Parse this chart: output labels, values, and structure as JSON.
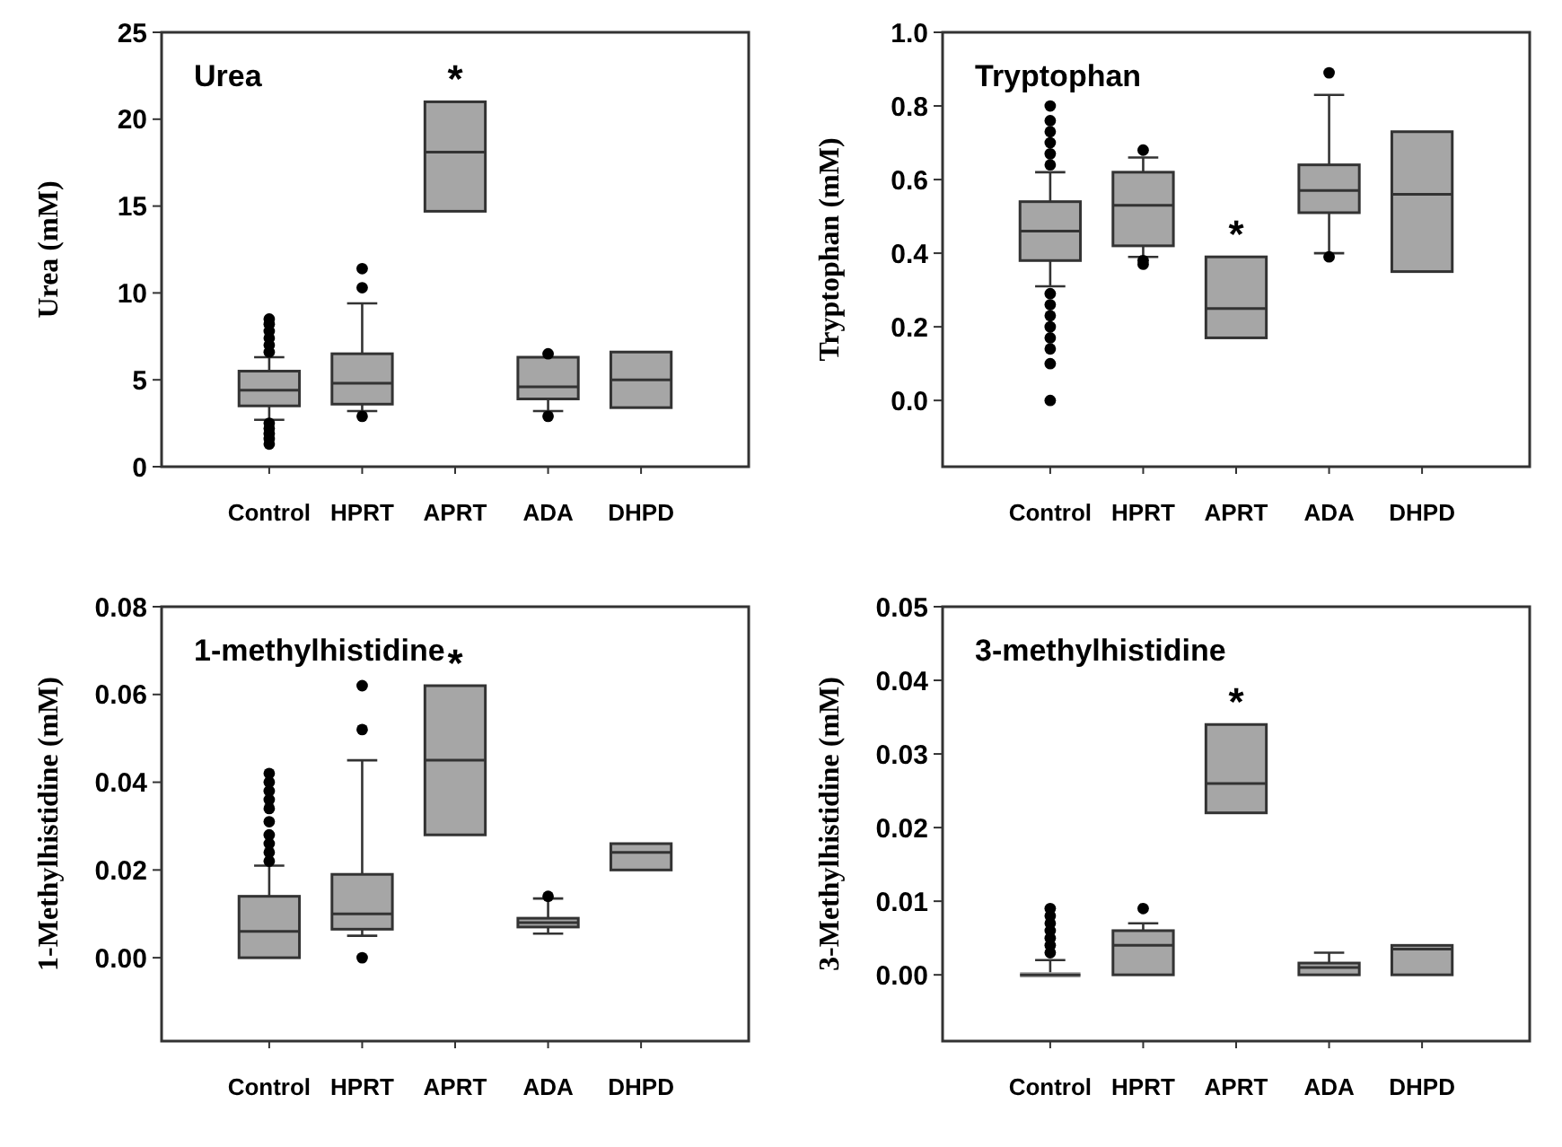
{
  "chart_data": [
    {
      "type": "box",
      "title": "Urea",
      "ylabel": "Urea (mM)",
      "categories": [
        "Control",
        "HPRT",
        "APRT",
        "ADA",
        "DHPD"
      ],
      "ylim": [
        0,
        25
      ],
      "yticks": [
        0,
        5,
        10,
        15,
        20,
        25
      ],
      "color": "#a6a6a6",
      "marker": "circle",
      "annotations": [
        {
          "text": "*",
          "x": "APRT",
          "y": 21.0
        }
      ],
      "boxes": [
        {
          "low": 2.7,
          "q1": 3.5,
          "median": 4.4,
          "q3": 5.5,
          "high": 6.3,
          "outliers": [
            1.3,
            1.6,
            1.9,
            2.2,
            2.5,
            6.6,
            7.0,
            7.4,
            7.8,
            8.2,
            8.5
          ]
        },
        {
          "low": 3.2,
          "q1": 3.6,
          "median": 4.8,
          "q3": 6.5,
          "high": 9.4,
          "outliers": [
            2.9,
            10.3,
            11.4
          ]
        },
        {
          "low": 14.7,
          "q1": 14.7,
          "median": 18.1,
          "q3": 21.0,
          "high": 21.0
        },
        {
          "low": 3.2,
          "q1": 3.9,
          "median": 4.6,
          "q3": 6.3,
          "high": 6.3,
          "outliers": [
            2.9,
            6.5
          ]
        },
        {
          "low": 3.4,
          "q1": 3.4,
          "median": 5.0,
          "q3": 6.6,
          "high": 6.6
        }
      ]
    },
    {
      "type": "box",
      "title": "Tryptophan",
      "ylabel": "Tryptophan (mM)",
      "categories": [
        "Control",
        "HPRT",
        "APRT",
        "ADA",
        "DHPD"
      ],
      "ylim": [
        -0.18,
        1.0
      ],
      "yticks": [
        {
          "value": 0,
          "label": "0.0"
        },
        0.2,
        0.4,
        0.6,
        0.8,
        {
          "value": 1,
          "label": "1.0"
        }
      ],
      "color": "#a6a6a6",
      "marker": "circle",
      "annotations": [
        {
          "text": "*",
          "x": "APRT",
          "y": 0.39
        }
      ],
      "boxes": [
        {
          "low": 0.31,
          "q1": 0.38,
          "median": 0.46,
          "q3": 0.54,
          "high": 0.62,
          "outliers": [
            0,
            0.1,
            0.14,
            0.17,
            0.2,
            0.23,
            0.26,
            0.29,
            0.64,
            0.67,
            0.7,
            0.73,
            0.76,
            0.8
          ]
        },
        {
          "low": 0.39,
          "q1": 0.42,
          "median": 0.53,
          "q3": 0.62,
          "high": 0.66,
          "outliers": [
            0.37,
            0.38,
            0.68
          ]
        },
        {
          "low": 0.17,
          "q1": 0.17,
          "median": 0.25,
          "q3": 0.39,
          "high": 0.39
        },
        {
          "low": 0.4,
          "q1": 0.51,
          "median": 0.57,
          "q3": 0.64,
          "high": 0.83,
          "outliers": [
            0.39,
            0.89
          ]
        },
        {
          "low": 0.35,
          "q1": 0.35,
          "median": 0.56,
          "q3": 0.73,
          "high": 0.73
        }
      ]
    },
    {
      "type": "box",
      "title": "1-methylhistidine",
      "ylabel": "1-Methylhistidine (mM)",
      "categories": [
        "Control",
        "HPRT",
        "APRT",
        "ADA",
        "DHPD"
      ],
      "ylim": [
        -0.019,
        0.08
      ],
      "yticks": [
        {
          "value": 0,
          "label": "0.00"
        },
        0.02,
        0.04,
        0.06,
        {
          "value": 0.08,
          "label": "0.08"
        }
      ],
      "color": "#a6a6a6",
      "marker": "circle",
      "annotations": [
        {
          "text": "*",
          "x": "APRT",
          "y": 0.062
        }
      ],
      "boxes": [
        {
          "low": 0,
          "q1": 0,
          "median": 0.006,
          "q3": 0.014,
          "high": 0.021,
          "outliers": [
            0.022,
            0.024,
            0.026,
            0.028,
            0.031,
            0.034,
            0.036,
            0.038,
            0.04,
            0.042
          ]
        },
        {
          "low": 0.005,
          "q1": 0.0065,
          "median": 0.01,
          "q3": 0.019,
          "high": 0.045,
          "outliers": [
            0,
            0.052,
            0.062
          ]
        },
        {
          "low": 0.028,
          "q1": 0.028,
          "median": 0.045,
          "q3": 0.062,
          "high": 0.062
        },
        {
          "low": 0.0055,
          "q1": 0.007,
          "median": 0.008,
          "q3": 0.009,
          "high": 0.0135,
          "outliers": [
            0.014
          ]
        },
        {
          "low": 0.02,
          "q1": 0.02,
          "median": 0.024,
          "q3": 0.026,
          "high": 0.026
        }
      ]
    },
    {
      "type": "box",
      "title": "3-methylhistidine",
      "ylabel": "3-Methylhistidine (mM)",
      "categories": [
        "Control",
        "HPRT",
        "APRT",
        "ADA",
        "DHPD"
      ],
      "ylim": [
        -0.009,
        0.05
      ],
      "yticks": [
        {
          "value": 0,
          "label": "0.00"
        },
        0.01,
        0.02,
        0.03,
        0.04,
        0.05
      ],
      "color": "#a6a6a6",
      "marker": "circle",
      "annotations": [
        {
          "text": "*",
          "x": "APRT",
          "y": 0.034
        }
      ],
      "boxes": [
        {
          "low": 0,
          "q1": 0,
          "median": 0,
          "q3": 0,
          "high": 0.002,
          "outliers": [
            0.003,
            0.004,
            0.005,
            0.006,
            0.007,
            0.008,
            0.009
          ]
        },
        {
          "low": 0,
          "q1": 0,
          "median": 0.004,
          "q3": 0.006,
          "high": 0.007,
          "outliers": [
            0.009
          ]
        },
        {
          "low": 0.022,
          "q1": 0.022,
          "median": 0.026,
          "q3": 0.034,
          "high": 0.034
        },
        {
          "low": 0,
          "q1": 0,
          "median": 0.001,
          "q3": 0.0016,
          "high": 0.003
        },
        {
          "low": 0,
          "q1": 0,
          "median": 0.0035,
          "q3": 0.004,
          "high": 0.004
        }
      ]
    }
  ]
}
